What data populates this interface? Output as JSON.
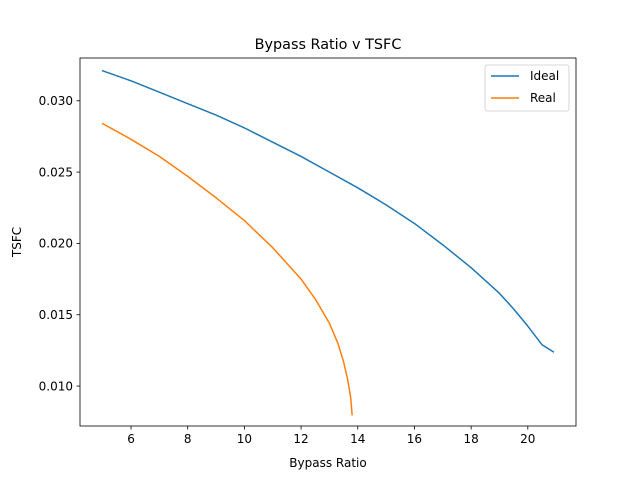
{
  "chart_data": {
    "type": "line",
    "title": "Bypass Ratio v TSFC",
    "xlabel": "Bypass Ratio",
    "ylabel": "TSFC",
    "xlim": [
      4.2,
      21.7
    ],
    "ylim": [
      0.0072,
      0.033
    ],
    "xticks": [
      6,
      8,
      10,
      12,
      14,
      16,
      18,
      20
    ],
    "yticks": [
      0.01,
      0.015,
      0.02,
      0.025,
      0.03
    ],
    "xtick_labels": [
      "6",
      "8",
      "10",
      "12",
      "14",
      "16",
      "18",
      "20"
    ],
    "ytick_labels": [
      "0.010",
      "0.015",
      "0.020",
      "0.025",
      "0.030"
    ],
    "grid": false,
    "legend_position": "top-right",
    "series": [
      {
        "name": "Ideal",
        "color": "#1f77b4",
        "x": [
          5.0,
          6.0,
          7.0,
          8.0,
          9.0,
          10.0,
          11.0,
          12.0,
          13.0,
          14.0,
          15.0,
          16.0,
          17.0,
          18.0,
          19.0,
          19.5,
          20.0,
          20.5,
          20.9
        ],
        "y": [
          0.0321,
          0.0314,
          0.0306,
          0.0298,
          0.029,
          0.0281,
          0.0271,
          0.0261,
          0.025,
          0.0239,
          0.0227,
          0.0214,
          0.0199,
          0.0183,
          0.0165,
          0.0154,
          0.0142,
          0.0129,
          0.0124
        ]
      },
      {
        "name": "Real",
        "color": "#ff7f0e",
        "x": [
          5.0,
          6.0,
          7.0,
          8.0,
          9.0,
          10.0,
          11.0,
          12.0,
          12.5,
          13.0,
          13.3,
          13.5,
          13.65,
          13.75,
          13.8
        ],
        "y": [
          0.0284,
          0.0273,
          0.0261,
          0.0247,
          0.0232,
          0.0216,
          0.0197,
          0.0175,
          0.0161,
          0.0144,
          0.013,
          0.0117,
          0.0104,
          0.0092,
          0.008
        ]
      }
    ]
  }
}
